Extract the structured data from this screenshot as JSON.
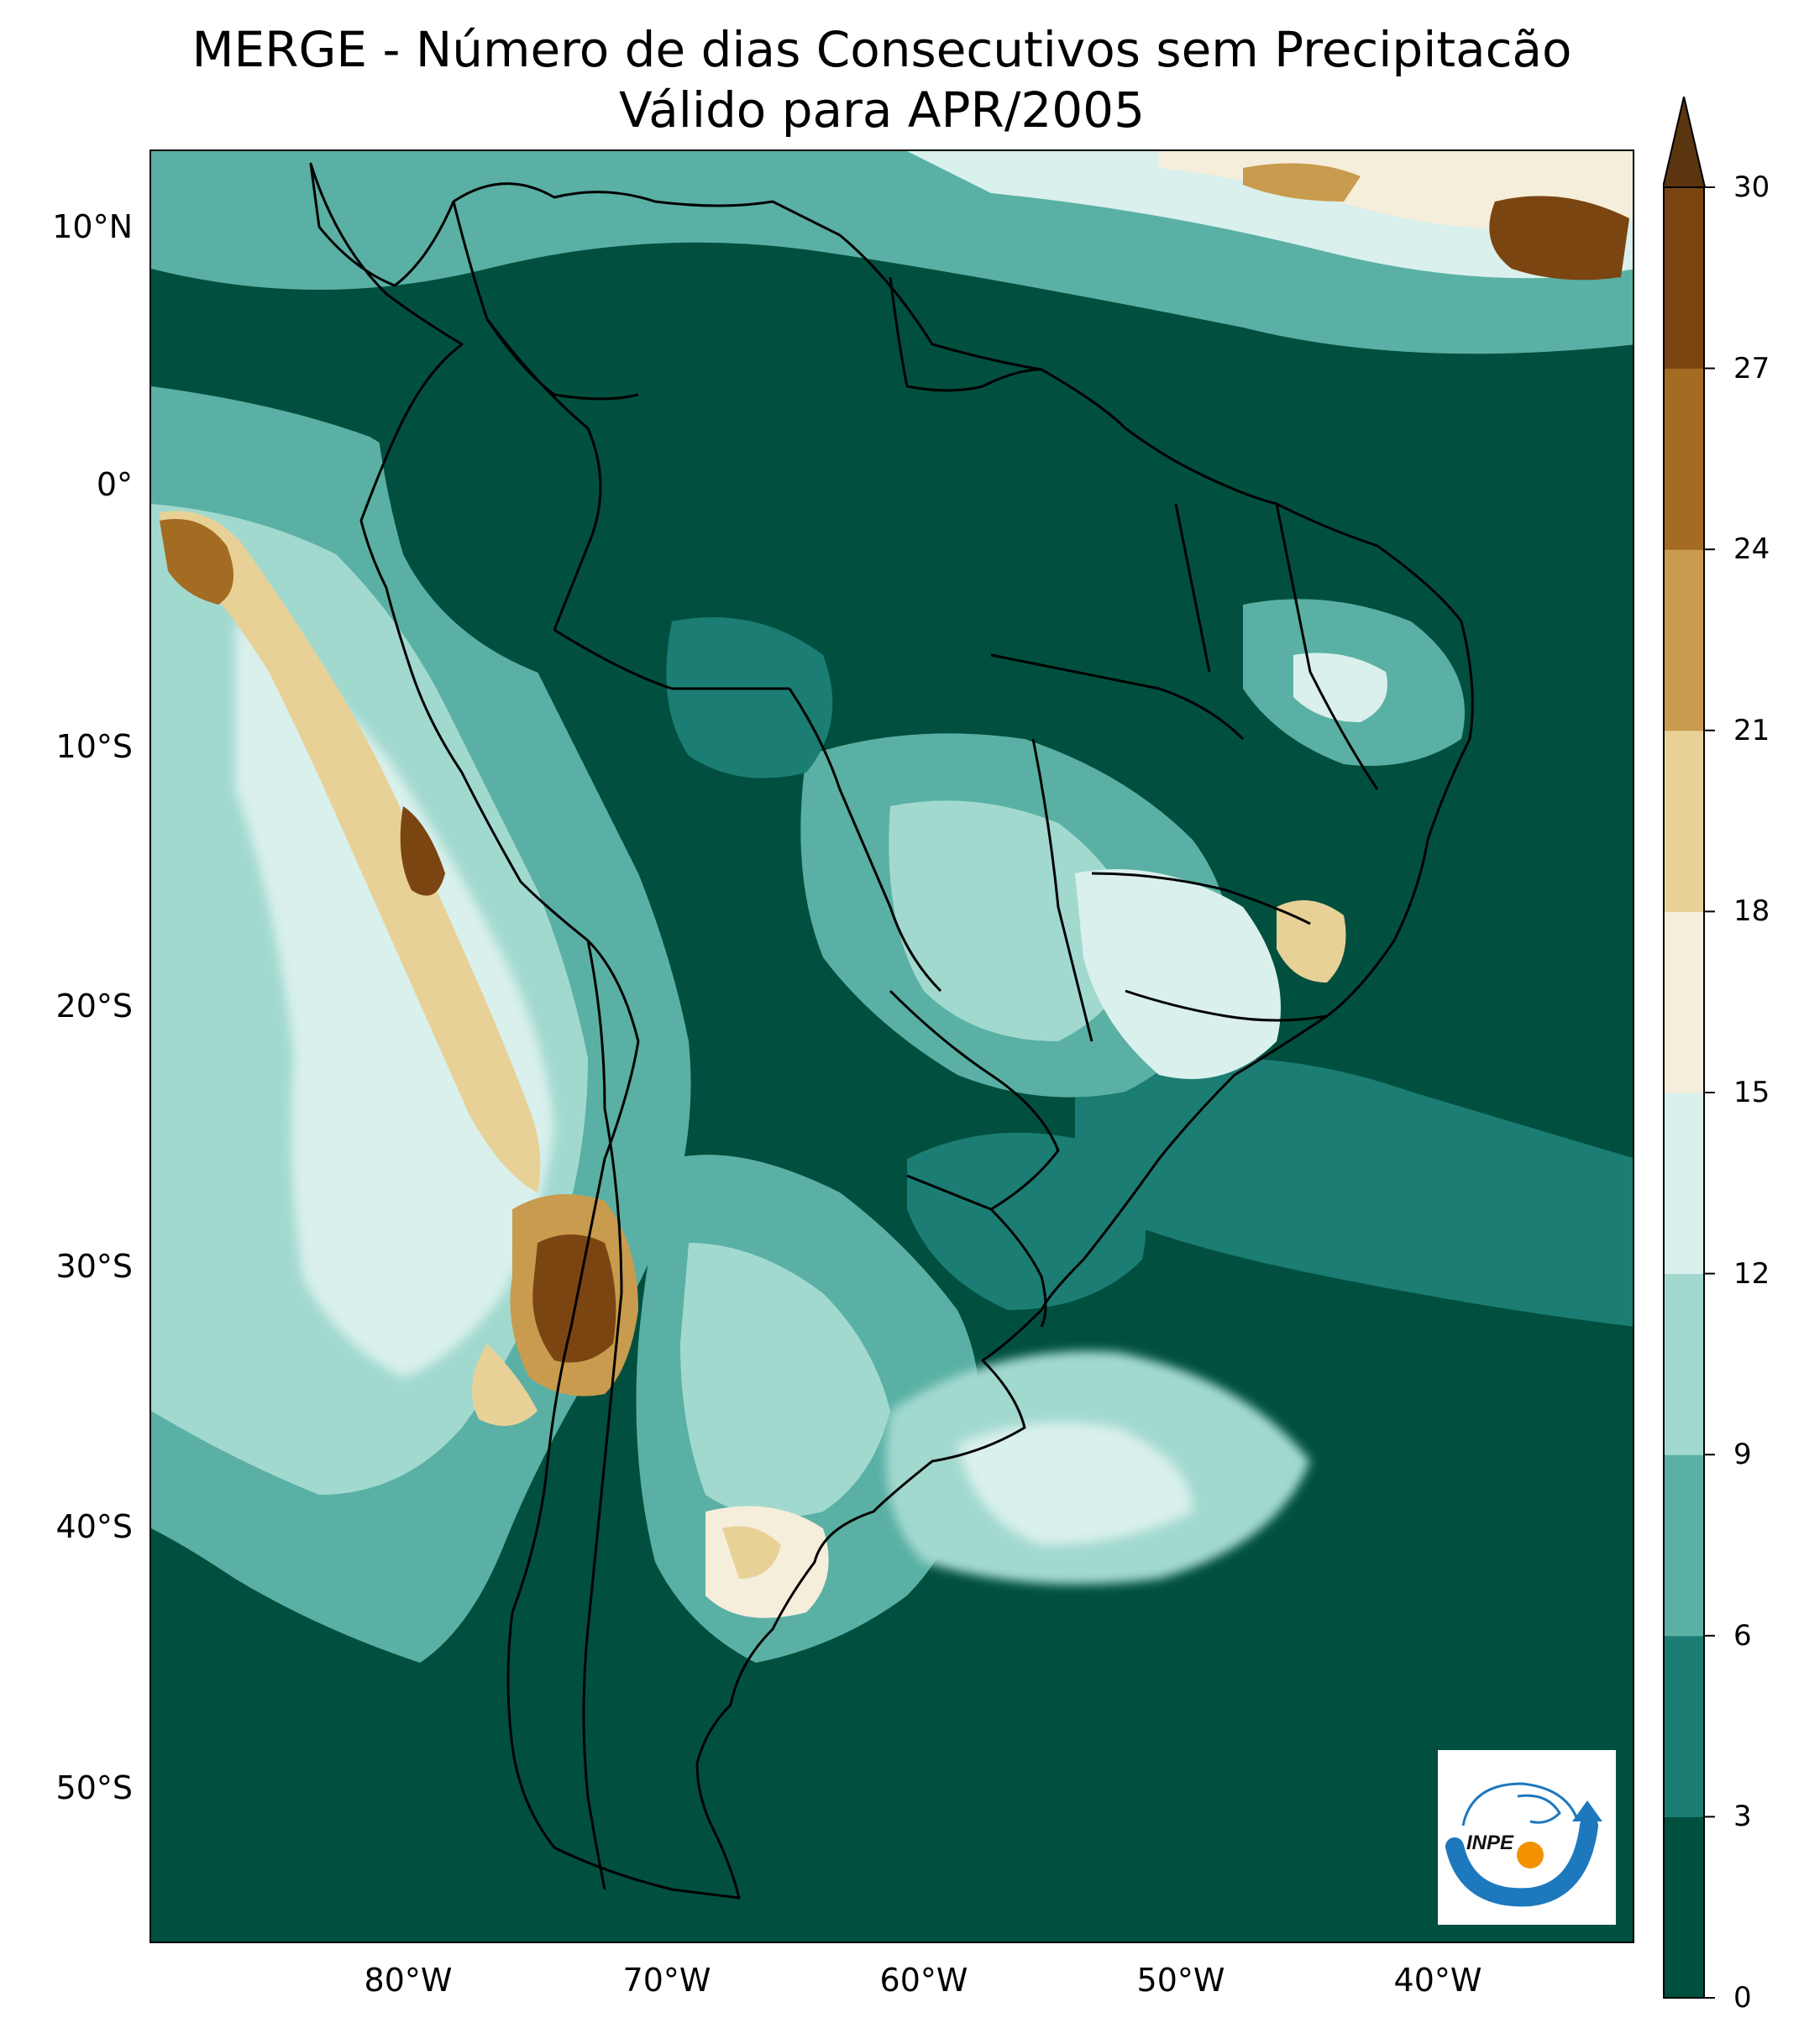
{
  "title_line1": "MERGE - Número de dias Consecutivos sem Precipitacão",
  "title_line2": "Válido para APR/2005",
  "latitude_labels": [
    "10°N",
    "0°",
    "10°S",
    "20°S",
    "30°S",
    "40°S",
    "50°S"
  ],
  "longitude_labels": [
    "80°W",
    "70°W",
    "60°W",
    "50°W",
    "40°W"
  ],
  "colorbar": {
    "ticks": [
      "0",
      "3",
      "6",
      "9",
      "12",
      "15",
      "18",
      "21",
      "24",
      "27",
      "30"
    ],
    "colors": [
      "#01503f",
      "#1b7d73",
      "#5ab0a4",
      "#a2d9cf",
      "#d9f0ec",
      "#f5eedb",
      "#e8d196",
      "#c99b4e",
      "#a46b22",
      "#7b4512"
    ],
    "extend_color": "#5b3410",
    "extend": "max"
  },
  "logo": {
    "text": "INPE",
    "icon": "inpe-logo-icon"
  },
  "legend_colors": {
    "coast": "#000000"
  }
}
